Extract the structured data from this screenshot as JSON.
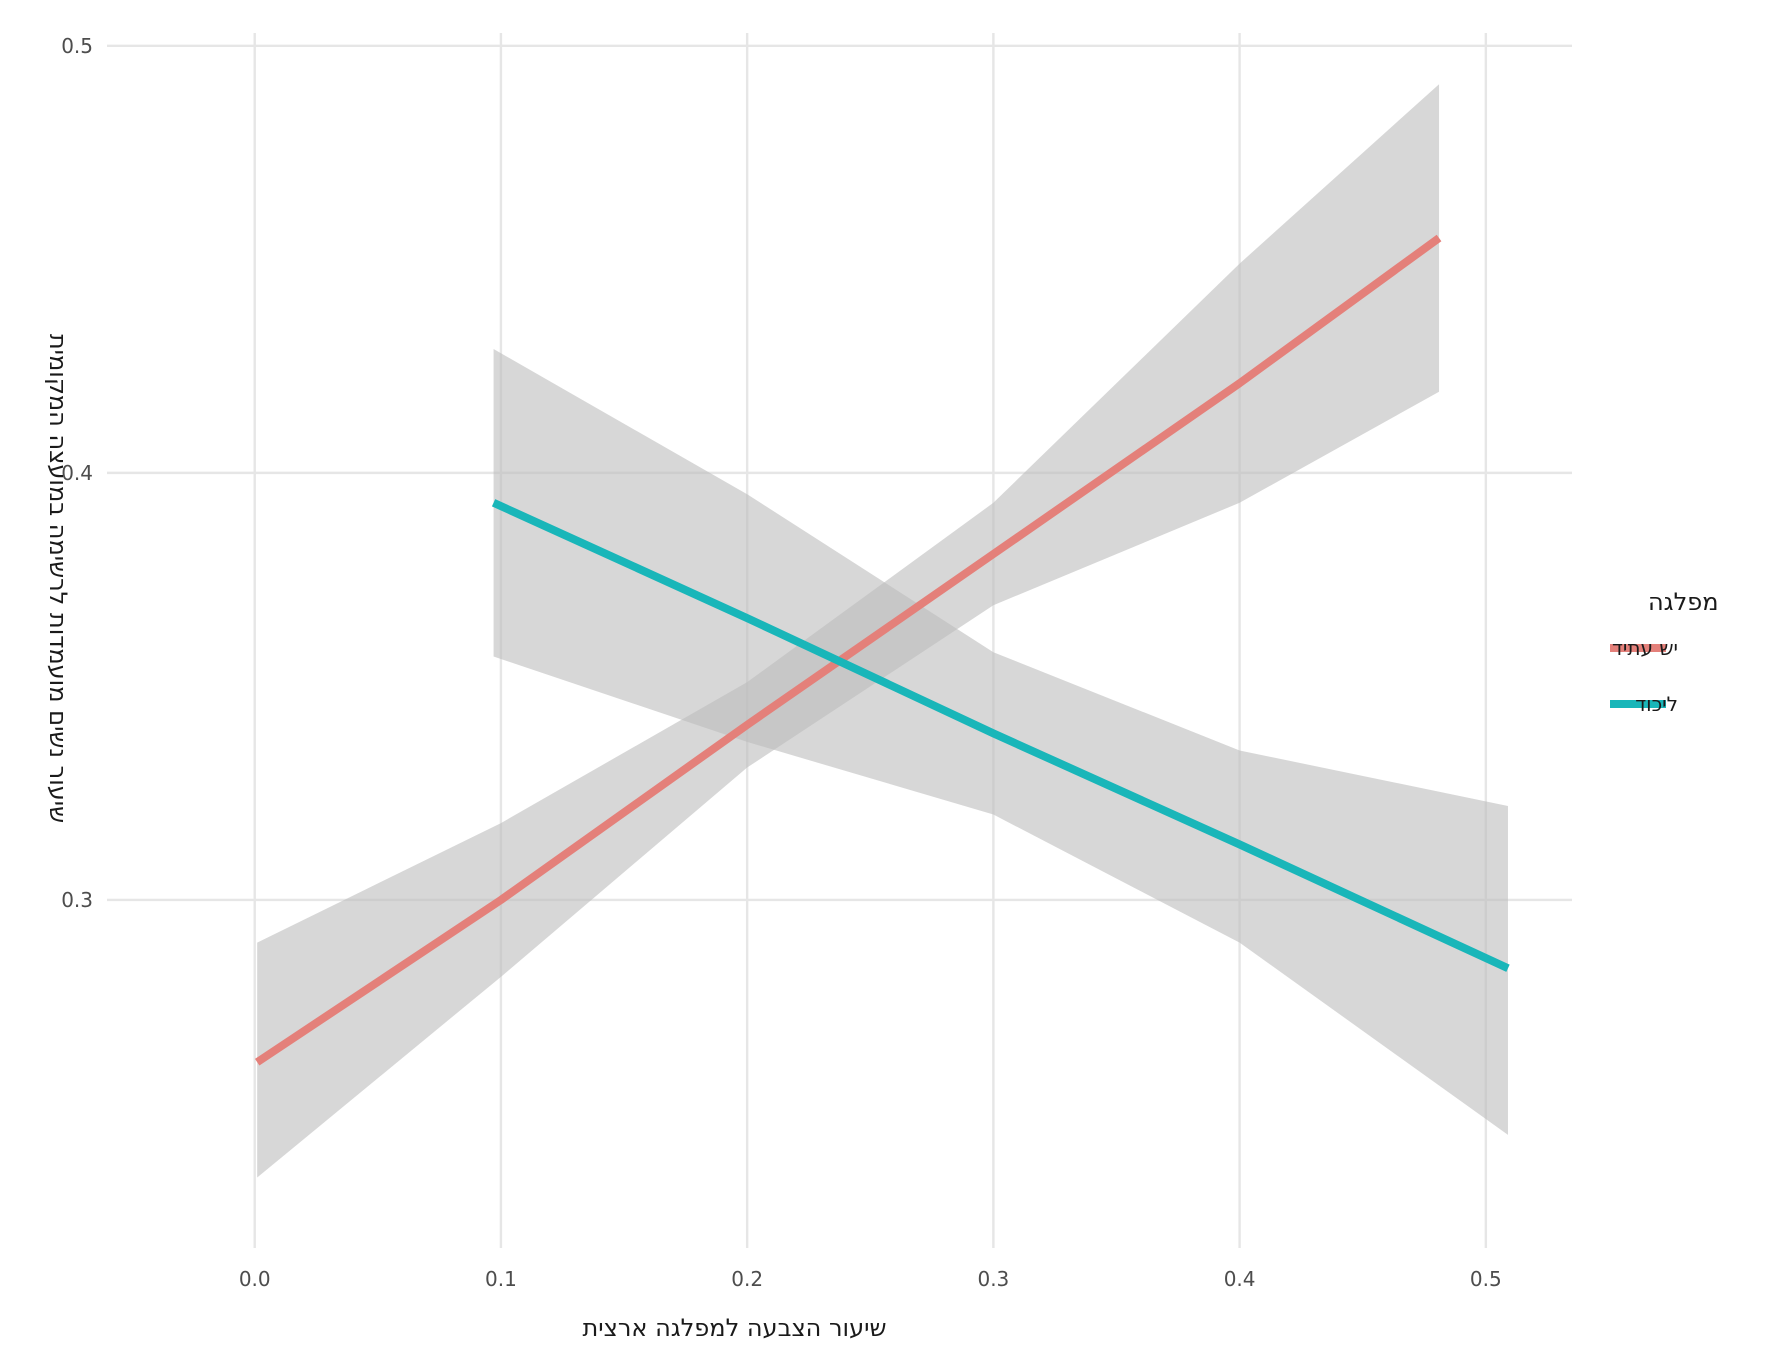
{
  "chart_data": {
    "type": "line",
    "title": "",
    "xlabel": "שיעור הצבעה למפלגה ארצית",
    "ylabel": "שיעור נשים מועמדות לרשימה במועצה המקומית",
    "xlim": [
      -0.06,
      0.535
    ],
    "ylim": [
      0.2185,
      0.503
    ],
    "x_ticks": [
      0.0,
      0.1,
      0.2,
      0.3,
      0.4,
      0.5
    ],
    "x_tick_labels": [
      "0.0",
      "0.1",
      "0.2",
      "0.3",
      "0.4",
      "0.5"
    ],
    "y_ticks": [
      0.3,
      0.4,
      0.5
    ],
    "y_tick_labels": [
      "0.3",
      "0.4",
      "0.5"
    ],
    "grid": true,
    "legend": {
      "title": "מפלגה",
      "position": "right"
    },
    "confidence_band_color": "#bdbdbd",
    "series": [
      {
        "name": "יש עתיד",
        "color": "#e4807a",
        "x": [
          0.001,
          0.1,
          0.2,
          0.3,
          0.4,
          0.481
        ],
        "y": [
          0.262,
          0.3,
          0.341,
          0.381,
          0.421,
          0.455
        ],
        "ci_lower": [
          0.235,
          0.282,
          0.331,
          0.369,
          0.393,
          0.419
        ],
        "ci_upper": [
          0.29,
          0.318,
          0.351,
          0.393,
          0.449,
          0.491
        ]
      },
      {
        "name": "ליכוד",
        "color": "#19b6b9",
        "x": [
          0.097,
          0.2,
          0.3,
          0.4,
          0.509
        ],
        "y": [
          0.393,
          0.366,
          0.339,
          0.313,
          0.284
        ],
        "ci_lower": [
          0.357,
          0.337,
          0.32,
          0.29,
          0.245
        ],
        "ci_upper": [
          0.429,
          0.395,
          0.358,
          0.335,
          0.322
        ]
      }
    ]
  }
}
